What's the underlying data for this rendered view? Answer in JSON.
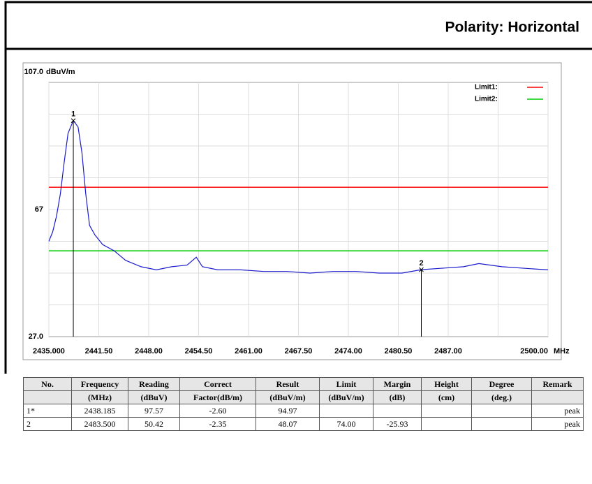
{
  "header": {
    "title": "Polarity: Horizontal"
  },
  "chart_data": {
    "type": "line",
    "y_unit": "dBuV/m",
    "x_unit": "MHz",
    "xlim": [
      2435,
      2500
    ],
    "xticks": [
      {
        "value": 2435,
        "label": "2435.000"
      },
      {
        "value": 2441.5,
        "label": "2441.50"
      },
      {
        "value": 2448,
        "label": "2448.00"
      },
      {
        "value": 2454.5,
        "label": "2454.50"
      },
      {
        "value": 2461,
        "label": "2461.00"
      },
      {
        "value": 2467.5,
        "label": "2467.50"
      },
      {
        "value": 2474,
        "label": "2474.00"
      },
      {
        "value": 2480.5,
        "label": "2480.50"
      },
      {
        "value": 2487,
        "label": "2487.00"
      },
      {
        "value": 2500,
        "label": "2500.00"
      }
    ],
    "xgrid": [
      2435,
      2441.5,
      2448,
      2454.5,
      2461,
      2467.5,
      2474,
      2480.5,
      2487,
      2493.5,
      2500
    ],
    "ylim": [
      27,
      107
    ],
    "yticks": [
      {
        "value": 107,
        "label": "107.0"
      },
      67,
      {
        "value": 27,
        "label": "27.0"
      }
    ],
    "ygrid": [
      37,
      47,
      57,
      67,
      77,
      87,
      97
    ],
    "grid": true,
    "series": [
      {
        "name": "Trace",
        "color": "#1a1acc",
        "x": [
          2435,
          2435.5,
          2436,
          2436.5,
          2437,
          2437.5,
          2438.185,
          2438.8,
          2439.3,
          2439.8,
          2440.3,
          2441,
          2442,
          2443.5,
          2445,
          2447,
          2449,
          2451,
          2453,
          2454.2,
          2455,
          2457,
          2460,
          2463,
          2466,
          2469,
          2472,
          2475,
          2478,
          2481,
          2483.5,
          2486,
          2489,
          2491,
          2494,
          2497,
          2500
        ],
        "values": [
          57,
          60,
          65,
          72,
          82,
          91,
          94.97,
          93,
          85,
          72,
          62,
          59,
          56,
          54,
          51,
          49,
          48,
          49,
          49.5,
          52,
          49,
          48,
          48,
          47.5,
          47.5,
          47,
          47.5,
          47.5,
          47,
          47,
          48.07,
          48.5,
          49,
          50,
          49,
          48.5,
          48
        ]
      }
    ],
    "limits": [
      {
        "name": "Limit1:",
        "color": "#ff0000",
        "value": 74
      },
      {
        "name": "Limit2:",
        "color": "#00cc00",
        "value": 54
      }
    ],
    "markers": [
      {
        "label": "1",
        "x": 2438.185,
        "value": 94.97
      },
      {
        "label": "2",
        "x": 2483.5,
        "value": 48.07
      }
    ]
  },
  "table": {
    "header": [
      [
        "No.",
        "Frequency",
        "Reading",
        "Correct",
        "Result",
        "Limit",
        "Margin",
        "Height",
        "Degree",
        "Remark"
      ],
      [
        null,
        "(MHz)",
        "(dBuV)",
        "Factor(dB/m)",
        "(dBuV/m)",
        "(dBuV/m)",
        "(dB)",
        "(cm)",
        "(deg.)",
        null
      ]
    ],
    "rows": [
      [
        "1*",
        "2438.185",
        "97.57",
        "-2.60",
        "94.97",
        null,
        null,
        null,
        null,
        "peak"
      ],
      [
        "2",
        "2483.500",
        "50.42",
        "-2.35",
        "48.07",
        "74.00",
        "-25.93",
        null,
        null,
        "peak"
      ]
    ]
  }
}
